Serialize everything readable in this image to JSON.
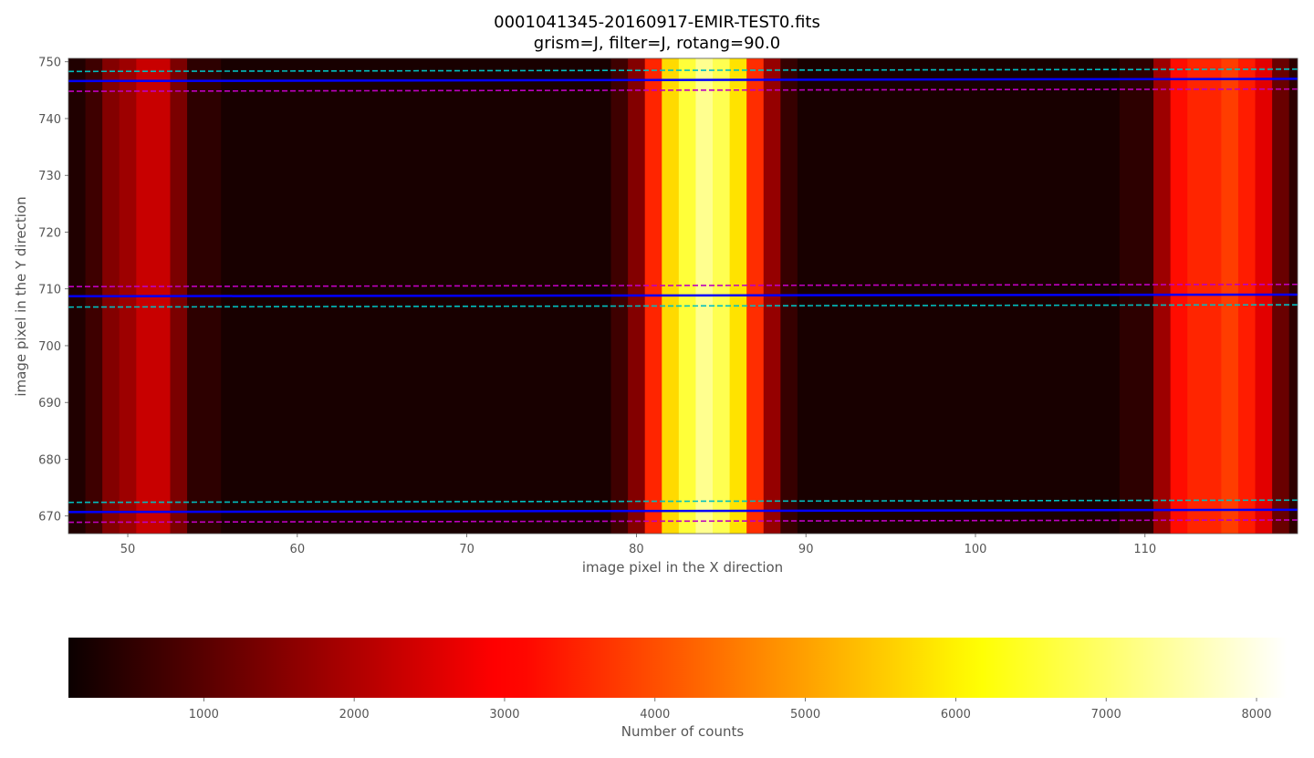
{
  "chart_data": [
    {
      "type": "heatmap",
      "title": "0001041345-20160917-EMIR-TEST0.fits",
      "subtitle": "grism=J, filter=J, rotang=90.0",
      "xlabel": "image pixel in the X direction",
      "ylabel": "image pixel in the Y direction",
      "xlim": [
        46.5,
        119.0
      ],
      "ylim": [
        666.9,
        750.6
      ],
      "xticks": [
        50,
        60,
        70,
        80,
        90,
        100,
        110
      ],
      "yticks": [
        670,
        680,
        690,
        700,
        710,
        720,
        730,
        740,
        750
      ],
      "colormap": "hot",
      "vmin": 100,
      "vmax": 8200,
      "grid": false,
      "intensity_bands": [
        {
          "x": [
            46.5,
            47.5
          ],
          "counts": 350
        },
        {
          "x": [
            47.5,
            48.5
          ],
          "counts": 700
        },
        {
          "x": [
            48.5,
            49.5
          ],
          "counts": 1500
        },
        {
          "x": [
            49.5,
            50.5
          ],
          "counts": 1800
        },
        {
          "x": [
            50.5,
            52.5
          ],
          "counts": 2300
        },
        {
          "x": [
            52.5,
            53.5
          ],
          "counts": 1400
        },
        {
          "x": [
            53.5,
            55.5
          ],
          "counts": 500
        },
        {
          "x": [
            55.5,
            78.5
          ],
          "counts": 250
        },
        {
          "x": [
            78.5,
            79.5
          ],
          "counts": 700
        },
        {
          "x": [
            79.5,
            80.5
          ],
          "counts": 1500
        },
        {
          "x": [
            80.5,
            81.5
          ],
          "counts": 3500
        },
        {
          "x": [
            81.5,
            82.5
          ],
          "counts": 5700
        },
        {
          "x": [
            82.5,
            83.5
          ],
          "counts": 6600
        },
        {
          "x": [
            83.5,
            84.5
          ],
          "counts": 7300
        },
        {
          "x": [
            84.5,
            85.5
          ],
          "counts": 6800
        },
        {
          "x": [
            85.5,
            86.5
          ],
          "counts": 5800
        },
        {
          "x": [
            86.5,
            87.5
          ],
          "counts": 3600
        },
        {
          "x": [
            87.5,
            88.5
          ],
          "counts": 1700
        },
        {
          "x": [
            88.5,
            89.5
          ],
          "counts": 600
        },
        {
          "x": [
            89.5,
            108.5
          ],
          "counts": 250
        },
        {
          "x": [
            108.5,
            110.5
          ],
          "counts": 500
        },
        {
          "x": [
            110.5,
            111.5
          ],
          "counts": 1800
        },
        {
          "x": [
            111.5,
            112.5
          ],
          "counts": 3200
        },
        {
          "x": [
            112.5,
            114.5
          ],
          "counts": 3500
        },
        {
          "x": [
            114.5,
            115.5
          ],
          "counts": 3800
        },
        {
          "x": [
            115.5,
            116.5
          ],
          "counts": 3400
        },
        {
          "x": [
            116.5,
            117.5
          ],
          "counts": 2600
        },
        {
          "x": [
            117.5,
            118.5
          ],
          "counts": 1200
        },
        {
          "x": [
            118.5,
            119.0
          ],
          "counts": 500
        }
      ],
      "lines": [
        {
          "style": "solid",
          "color": "#0000ff",
          "y_left": 746.6,
          "y_right": 747.0
        },
        {
          "style": "dashed",
          "color": "#00bfbf",
          "y_left": 748.3,
          "y_right": 748.7
        },
        {
          "style": "dashed",
          "color": "#bf00bf",
          "y_left": 744.8,
          "y_right": 745.2
        },
        {
          "style": "solid",
          "color": "#0000ff",
          "y_left": 708.7,
          "y_right": 709.0
        },
        {
          "style": "dashed",
          "color": "#bf00bf",
          "y_left": 710.4,
          "y_right": 710.8
        },
        {
          "style": "dashed",
          "color": "#00bfbf",
          "y_left": 706.8,
          "y_right": 707.2
        },
        {
          "style": "solid",
          "color": "#0000ff",
          "y_left": 670.7,
          "y_right": 671.1
        },
        {
          "style": "dashed",
          "color": "#00bfbf",
          "y_left": 672.4,
          "y_right": 672.8
        },
        {
          "style": "dashed",
          "color": "#bf00bf",
          "y_left": 668.9,
          "y_right": 669.3
        }
      ]
    },
    {
      "type": "colorbar",
      "label": "Number of counts",
      "lim": [
        100,
        8200
      ],
      "ticks": [
        1000,
        2000,
        3000,
        4000,
        5000,
        6000,
        7000,
        8000
      ],
      "colormap": "hot"
    }
  ]
}
